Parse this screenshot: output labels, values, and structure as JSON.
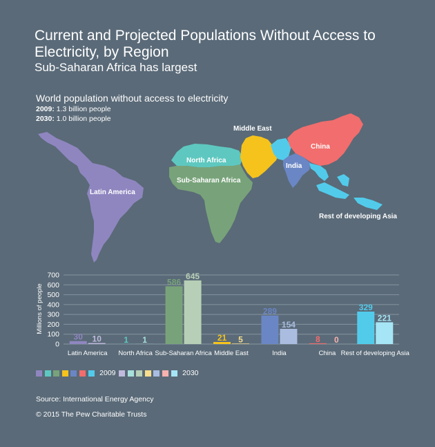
{
  "header": {
    "title": "Current and Projected Populations Without Access to Electricity, by Region",
    "subtitle": "Sub-Saharan Africa has largest"
  },
  "map": {
    "title": "World population without access to electricity",
    "stat_2009_year": "2009:",
    "stat_2009_value": "1.3 billion people",
    "stat_2030_year": "2030:",
    "stat_2030_value": "1.0 billion people",
    "labels": {
      "latin_america": "Latin America",
      "north_africa": "North Africa",
      "sub_saharan_africa": "Sub-Saharan Africa",
      "middle_east": "Middle East",
      "india": "India",
      "china": "China",
      "rest_of_asia": "Rest of developing Asia"
    }
  },
  "chart_data": {
    "type": "bar",
    "ylabel": "Millions of people",
    "ylim": [
      0,
      700
    ],
    "yticks": [
      0,
      100,
      200,
      300,
      400,
      500,
      600,
      700
    ],
    "grid": true,
    "categories": [
      "Latin America",
      "North Africa",
      "Sub-Saharan Africa",
      "Middle East",
      "India",
      "China",
      "Rest of developing Asia"
    ],
    "series": [
      {
        "name": "2009",
        "values": [
          30,
          1,
          586,
          21,
          289,
          8,
          329
        ],
        "colors": [
          "#8f86c0",
          "#5ec8c0",
          "#78a37a",
          "#f5c31c",
          "#6a86c4",
          "#f26d6d",
          "#52cbeb"
        ]
      },
      {
        "name": "2030",
        "values": [
          10,
          1,
          645,
          5,
          154,
          0,
          221
        ],
        "colors": [
          "#c0bbdd",
          "#a8e0dc",
          "#b7cfb6",
          "#f8de8c",
          "#aabde0",
          "#f7b2b0",
          "#a6e5f6"
        ]
      }
    ],
    "legend_position": "bottom-left"
  },
  "colors": {
    "background": "#5a6a78",
    "grid": "#8795a0",
    "latin_america": "#8f86c0",
    "north_africa": "#5ec8c0",
    "sub_saharan_africa": "#78a37a",
    "middle_east": "#f5c31c",
    "india": "#6a86c4",
    "china": "#f26d6d",
    "rest_of_asia": "#52cbeb"
  },
  "footer": {
    "source": "Source:  International Energy Agency",
    "copyright": "© 2015 The Pew Charitable Trusts"
  }
}
